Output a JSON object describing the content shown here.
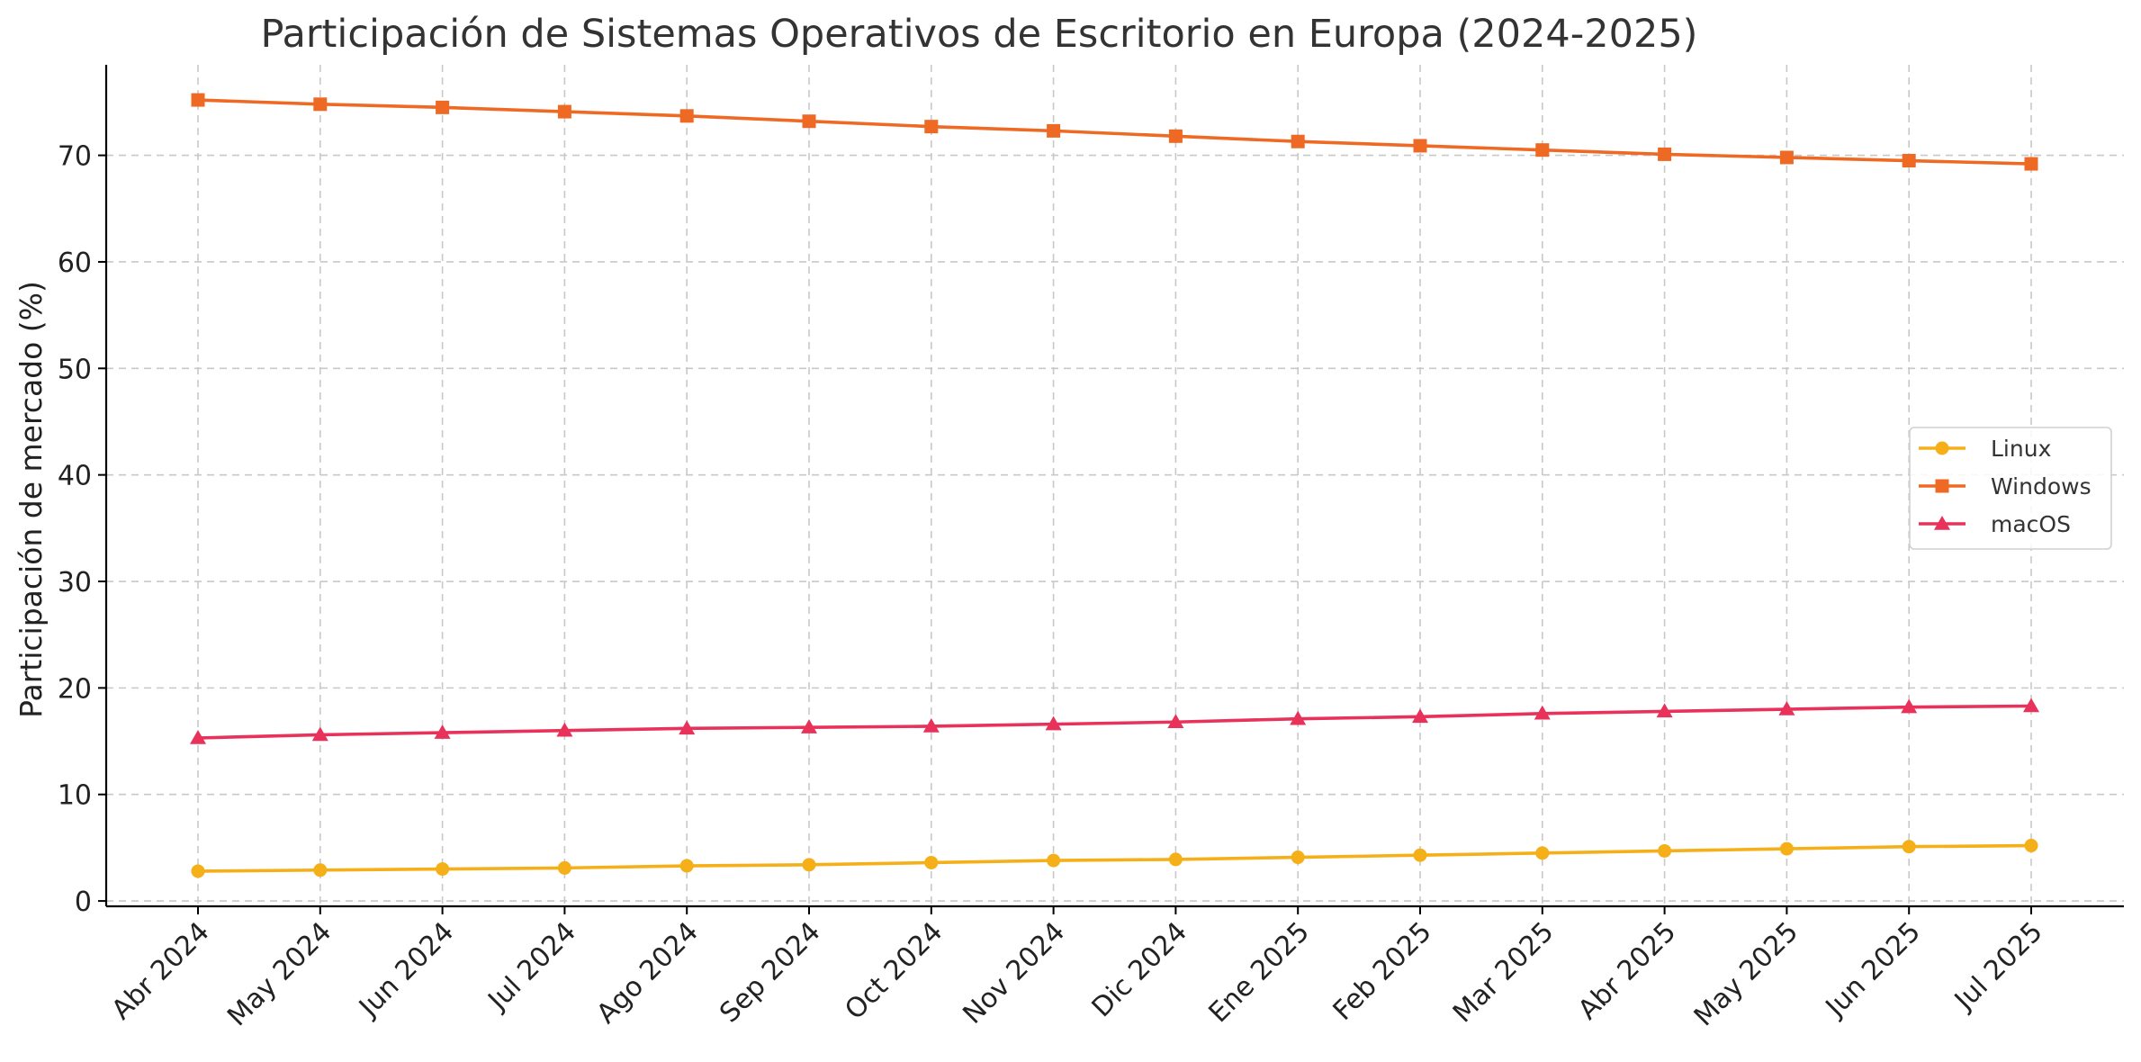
{
  "chart_data": {
    "type": "line",
    "title": "Participación de Sistemas Operativos de Escritorio en Europa (2024-2025)",
    "xlabel": "",
    "ylabel": "Participación de mercado (%)",
    "categories": [
      "Abr 2024",
      "May 2024",
      "Jun 2024",
      "Jul 2024",
      "Ago 2024",
      "Sep 2024",
      "Oct 2024",
      "Nov 2024",
      "Dic 2024",
      "Ene 2025",
      "Feb 2025",
      "Mar 2025",
      "Abr 2025",
      "May 2025",
      "Jun 2025",
      "Jul 2025"
    ],
    "yticks": [
      0,
      10,
      20,
      30,
      40,
      50,
      60,
      70
    ],
    "ylim": [
      -0.5,
      78.5
    ],
    "grid": true,
    "legend_position": "center-right",
    "series": [
      {
        "name": "Linux",
        "color": "#F5AF19",
        "marker": "circle",
        "values": [
          2.8,
          2.9,
          3.0,
          3.1,
          3.3,
          3.4,
          3.6,
          3.8,
          3.9,
          4.1,
          4.3,
          4.5,
          4.7,
          4.9,
          5.1,
          5.2
        ]
      },
      {
        "name": "Windows",
        "color": "#EE6A24",
        "marker": "square",
        "values": [
          75.2,
          74.8,
          74.5,
          74.1,
          73.7,
          73.2,
          72.7,
          72.3,
          71.8,
          71.3,
          70.9,
          70.5,
          70.1,
          69.8,
          69.5,
          69.2
        ]
      },
      {
        "name": "macOS",
        "color": "#E8325A",
        "marker": "triangle",
        "values": [
          15.3,
          15.6,
          15.8,
          16.0,
          16.2,
          16.3,
          16.4,
          16.6,
          16.8,
          17.1,
          17.3,
          17.6,
          17.8,
          18.0,
          18.2,
          18.3
        ]
      }
    ]
  }
}
